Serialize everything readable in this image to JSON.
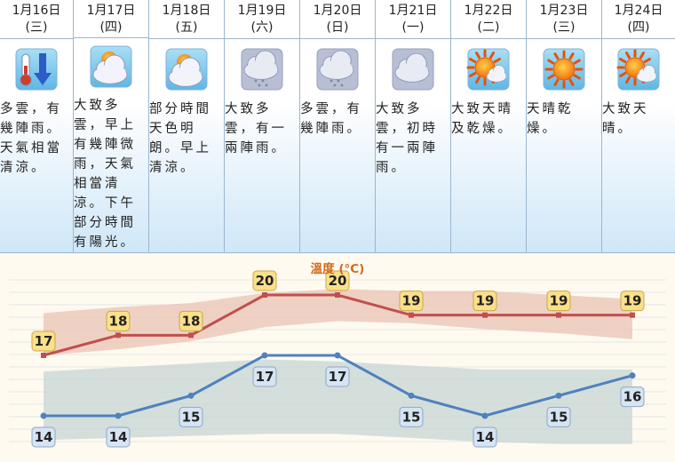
{
  "days": [
    {
      "date": "1月16日",
      "weekday": "(三)",
      "icon": "cold-thermometer-icon",
      "desc": "多雲，有幾陣雨。天氣相當清涼。"
    },
    {
      "date": "1月17日",
      "weekday": "(四)",
      "icon": "sun-behind-clouds-icon",
      "desc": "大致多雲，早上有幾陣微雨，天氣相當清涼。下午部分時間有陽光。"
    },
    {
      "date": "1月18日",
      "weekday": "(五)",
      "icon": "sun-behind-clouds-icon",
      "desc": "部分時間天色明朗。早上清涼。"
    },
    {
      "date": "1月19日",
      "weekday": "(六)",
      "icon": "cloud-rain-icon",
      "desc": "大致多雲，有一兩陣雨。"
    },
    {
      "date": "1月20日",
      "weekday": "(日)",
      "icon": "cloud-rain-icon",
      "desc": "多雲，有幾陣雨。"
    },
    {
      "date": "1月21日",
      "weekday": "(一)",
      "icon": "cloud-icon",
      "desc": "大致多雲，初時有一兩陣雨。"
    },
    {
      "date": "1月22日",
      "weekday": "(二)",
      "icon": "sun-with-cloud-icon",
      "desc": "大致天晴及乾燥。"
    },
    {
      "date": "1月23日",
      "weekday": "(三)",
      "icon": "sun-icon",
      "desc": "天晴乾燥。"
    },
    {
      "date": "1月24日",
      "weekday": "(四)",
      "icon": "sun-with-cloud-icon",
      "desc": "大致天晴。"
    }
  ],
  "colors": {
    "max_line": "#c0504d",
    "min_line": "#4f81bd",
    "max_band": "#eac3b6",
    "min_band": "#c5d6d6",
    "title": "#d2691e",
    "max_label_bg": "#fbe08a",
    "min_label_bg": "#d6e4f3"
  },
  "chart_data": {
    "type": "line",
    "title": "溫度 (°C)",
    "categories": [
      "1月16日",
      "1月17日",
      "1月18日",
      "1月19日",
      "1月20日",
      "1月21日",
      "1月22日",
      "1月23日",
      "1月24日"
    ],
    "series": [
      {
        "key": "max",
        "values": [
          17,
          18,
          18,
          20,
          20,
          19,
          19,
          19,
          19
        ]
      },
      {
        "key": "min",
        "values": [
          14,
          14,
          15,
          17,
          17,
          15,
          14,
          15,
          16
        ]
      }
    ],
    "max_range_band": {
      "upper": [
        19.1,
        19.4,
        19.6,
        20.1,
        20.3,
        20.2,
        20.2,
        20.0,
        19.8
      ],
      "lower": [
        17.0,
        17.3,
        17.7,
        18.4,
        18.7,
        18.6,
        18.3,
        18.1,
        17.8
      ]
    },
    "min_range_band": {
      "upper": [
        16.2,
        16.4,
        16.6,
        16.8,
        16.7,
        16.5,
        16.3,
        16.3,
        16.3
      ],
      "lower": [
        12.8,
        12.9,
        13.0,
        13.1,
        13.1,
        12.9,
        12.7,
        12.6,
        12.6
      ]
    },
    "ylim": [
      10,
      23
    ],
    "grid": true,
    "legend": "none"
  }
}
